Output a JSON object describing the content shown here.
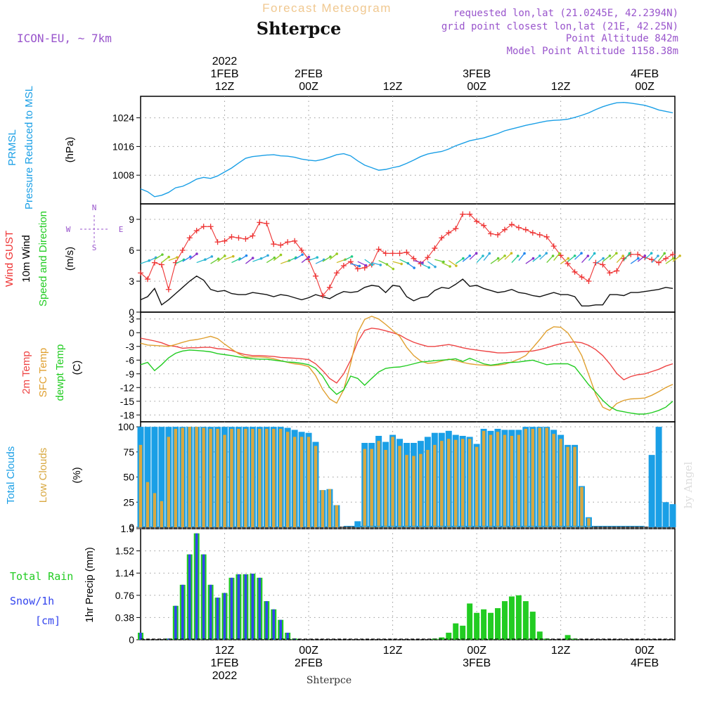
{
  "header": {
    "product_title": "Forecast Meteogram",
    "location": "Shterpce",
    "model": "ICON-EU, ~ 7km",
    "requested": "requested lon,lat (21.0245E, 42.2394N)",
    "grid_point": "grid point closest lon,lat (21E, 42.25N)",
    "point_altitude": "Point Altitude 842m",
    "model_altitude": "Model Point Altitude 1158.38m",
    "watermark": "by Angel",
    "bottom_label": "Shterpce"
  },
  "colors": {
    "pressure": "#1a9fe6",
    "gust": "#ee3333",
    "wind": "#111111",
    "temp": "#ee4444",
    "sfc_temp": "#e0a030",
    "dewpt": "#22cc22",
    "total_clouds": "#1a9fe6",
    "low_clouds": "#d8a840",
    "rain": "#22cc22",
    "snow": "#3344ee",
    "header_purple": "#9955cc",
    "header_orange": "#f0c890"
  },
  "time_axis": {
    "top_ticks": [
      {
        "t": 12,
        "l1": "1FEB",
        "l2": "12Z",
        "l0": "2022"
      },
      {
        "t": 24,
        "l1": "2FEB",
        "l2": "00Z"
      },
      {
        "t": 36,
        "l1": "",
        "l2": "12Z"
      },
      {
        "t": 48,
        "l1": "3FEB",
        "l2": "00Z"
      },
      {
        "t": 60,
        "l1": "",
        "l2": "12Z"
      },
      {
        "t": 72,
        "l1": "4FEB",
        "l2": "00Z"
      }
    ],
    "bottom_ticks": [
      {
        "t": 12,
        "l1": "12Z",
        "l2": "1FEB",
        "l3": "2022"
      },
      {
        "t": 24,
        "l1": "00Z",
        "l2": "2FEB"
      },
      {
        "t": 36,
        "l1": "12Z",
        "l2": ""
      },
      {
        "t": 48,
        "l1": "00Z",
        "l2": "3FEB"
      },
      {
        "t": 60,
        "l1": "12Z",
        "l2": ""
      },
      {
        "t": 72,
        "l1": "00Z",
        "l2": "4FEB"
      }
    ]
  },
  "chart_data": [
    {
      "type": "line",
      "name": "pressure",
      "ylabel_lines": [
        "PRMSL",
        "Pressure Reduced to MSL"
      ],
      "unit": "(hPa)",
      "yticks": [
        1008,
        1016,
        1024
      ],
      "ylim": [
        1000,
        1030
      ],
      "hours": [
        0,
        1,
        2,
        3,
        4,
        5,
        6,
        7,
        8,
        9,
        10,
        11,
        12,
        13,
        14,
        15,
        16,
        17,
        18,
        19,
        20,
        21,
        22,
        23,
        24,
        25,
        26,
        27,
        28,
        29,
        30,
        31,
        32,
        33,
        34,
        35,
        36,
        37,
        38,
        39,
        40,
        41,
        42,
        43,
        44,
        45,
        46,
        47,
        48,
        49,
        50,
        51,
        52,
        53,
        54,
        55,
        56,
        57,
        58,
        59,
        60,
        61,
        62,
        63,
        64,
        65,
        66,
        67,
        68,
        69,
        70,
        71,
        72,
        73,
        74,
        75,
        76
      ],
      "values": [
        1004.2,
        1003.4,
        1002.0,
        1002.4,
        1003.2,
        1004.5,
        1004.9,
        1005.8,
        1006.9,
        1007.4,
        1007.1,
        1007.8,
        1008.9,
        1010.0,
        1011.4,
        1012.7,
        1013.2,
        1013.4,
        1013.6,
        1013.7,
        1013.4,
        1013.3,
        1013.0,
        1012.5,
        1012.2,
        1012.0,
        1012.4,
        1013.0,
        1013.7,
        1014.0,
        1013.4,
        1012.0,
        1010.8,
        1010.1,
        1009.4,
        1009.6,
        1010.1,
        1010.5,
        1011.3,
        1012.2,
        1013.2,
        1013.9,
        1014.3,
        1014.6,
        1015.3,
        1016.2,
        1016.9,
        1017.6,
        1018.0,
        1018.4,
        1019.0,
        1019.6,
        1020.4,
        1020.9,
        1021.4,
        1021.9,
        1022.3,
        1022.7,
        1023.1,
        1023.3,
        1023.4,
        1023.6,
        1024.1,
        1024.7,
        1025.4,
        1026.3,
        1027.1,
        1027.7,
        1028.2,
        1028.3,
        1028.1,
        1027.8,
        1027.5,
        1026.9,
        1026.2,
        1025.8,
        1025.4
      ]
    },
    {
      "type": "line",
      "name": "wind",
      "ylabel_lines": [
        "Wind GUST",
        "10m Wind",
        "Speed and Direction"
      ],
      "unit": "(m/s)",
      "compass": {
        "n": "N",
        "s": "S",
        "w": "W",
        "e": "E"
      },
      "yticks": [
        0,
        3,
        6,
        9
      ],
      "ylim": [
        0,
        10.5
      ],
      "hours": [
        0,
        1,
        2,
        3,
        4,
        5,
        6,
        7,
        8,
        9,
        10,
        11,
        12,
        13,
        14,
        15,
        16,
        17,
        18,
        19,
        20,
        21,
        22,
        23,
        24,
        25,
        26,
        27,
        28,
        29,
        30,
        31,
        32,
        33,
        34,
        35,
        36,
        37,
        38,
        39,
        40,
        41,
        42,
        43,
        44,
        45,
        46,
        47,
        48,
        49,
        50,
        51,
        52,
        53,
        54,
        55,
        56,
        57,
        58,
        59,
        60,
        61,
        62,
        63,
        64,
        65,
        66,
        67,
        68,
        69,
        70,
        71,
        72,
        73,
        74,
        75,
        76
      ],
      "gust": [
        3.8,
        3.2,
        4.8,
        4.6,
        2.2,
        4.8,
        6.0,
        7.2,
        7.9,
        8.3,
        8.3,
        6.8,
        6.9,
        7.3,
        7.2,
        7.1,
        7.4,
        8.7,
        8.6,
        6.6,
        6.5,
        6.8,
        6.9,
        6.0,
        5.1,
        3.5,
        1.6,
        2.4,
        3.8,
        4.5,
        4.9,
        4.2,
        4.3,
        4.6,
        6.1,
        5.7,
        5.7,
        5.7,
        5.8,
        5.2,
        4.7,
        5.3,
        6.2,
        7.2,
        7.7,
        8.1,
        9.5,
        9.5,
        8.8,
        8.4,
        7.6,
        7.5,
        8.0,
        8.5,
        8.2,
        8.0,
        7.7,
        7.5,
        7.3,
        6.4,
        5.5,
        4.7,
        3.9,
        3.4,
        3.0,
        4.8,
        4.6,
        3.8,
        4.0,
        5.2,
        5.6,
        5.6,
        5.3,
        5.1,
        4.8,
        5.2,
        5.6
      ],
      "speed": [
        1.2,
        1.5,
        2.3,
        0.7,
        1.2,
        1.8,
        2.4,
        3.0,
        3.5,
        3.1,
        2.2,
        2.0,
        2.1,
        1.8,
        1.7,
        1.7,
        1.9,
        1.8,
        1.7,
        1.5,
        1.7,
        1.6,
        1.4,
        1.2,
        1.4,
        1.7,
        1.5,
        1.3,
        1.7,
        2.0,
        1.9,
        2.0,
        2.4,
        2.6,
        2.5,
        1.9,
        2.6,
        2.5,
        1.5,
        1.1,
        1.4,
        1.5,
        2.1,
        2.4,
        2.3,
        2.7,
        3.2,
        2.5,
        2.6,
        2.3,
        2.1,
        1.9,
        2.0,
        2.2,
        1.9,
        1.8,
        1.6,
        1.5,
        1.7,
        1.9,
        1.7,
        1.7,
        1.5,
        0.6,
        0.6,
        0.7,
        0.7,
        1.7,
        1.7,
        1.6,
        1.9,
        1.9,
        2.0,
        2.1,
        2.2,
        2.4,
        2.3
      ]
    },
    {
      "type": "line",
      "name": "temperature",
      "ylabel_lines": [
        "2m Temp",
        "SFC Temp",
        "dewpt Temp"
      ],
      "unit": "(C)",
      "yticks": [
        3,
        0,
        -3,
        -6,
        -9,
        -12,
        -15,
        -18
      ],
      "ylim": [
        -19.5,
        4.5
      ],
      "hours": [
        0,
        1,
        2,
        3,
        4,
        5,
        6,
        7,
        8,
        9,
        10,
        11,
        12,
        13,
        14,
        15,
        16,
        17,
        18,
        19,
        20,
        21,
        22,
        23,
        24,
        25,
        26,
        27,
        28,
        29,
        30,
        31,
        32,
        33,
        34,
        35,
        36,
        37,
        38,
        39,
        40,
        41,
        42,
        43,
        44,
        45,
        46,
        47,
        48,
        49,
        50,
        51,
        52,
        53,
        54,
        55,
        56,
        57,
        58,
        59,
        60,
        61,
        62,
        63,
        64,
        65,
        66,
        67,
        68,
        69,
        70,
        71,
        72,
        73,
        74,
        75,
        76
      ],
      "t2m": [
        -1.2,
        -1.5,
        -1.8,
        -2.2,
        -2.8,
        -3.0,
        -3.4,
        -3.3,
        -3.3,
        -3.2,
        -3.2,
        -3.5,
        -3.6,
        -3.9,
        -4.4,
        -4.8,
        -5.0,
        -5.0,
        -5.1,
        -5.2,
        -5.4,
        -5.5,
        -5.6,
        -5.7,
        -5.9,
        -6.8,
        -8.3,
        -10.0,
        -11.0,
        -9.0,
        -6.0,
        -2.0,
        0.5,
        1.0,
        0.8,
        0.4,
        0.0,
        -0.5,
        -1.4,
        -2.1,
        -2.6,
        -3.0,
        -3.0,
        -2.8,
        -2.6,
        -2.9,
        -3.3,
        -3.6,
        -3.8,
        -4.0,
        -4.2,
        -4.4,
        -4.4,
        -4.3,
        -4.2,
        -4.1,
        -4.0,
        -3.7,
        -3.3,
        -2.8,
        -2.4,
        -2.1,
        -2.0,
        -2.2,
        -2.8,
        -3.7,
        -5.0,
        -6.8,
        -8.9,
        -10.3,
        -9.6,
        -9.2,
        -9.0,
        -8.5,
        -8.0,
        -7.3,
        -6.8
      ],
      "sfc": [
        -2.3,
        -2.7,
        -2.8,
        -2.9,
        -3.0,
        -2.6,
        -2.1,
        -1.7,
        -1.5,
        -1.2,
        -0.8,
        -1.3,
        -2.5,
        -3.6,
        -4.6,
        -5.3,
        -5.3,
        -5.3,
        -5.4,
        -5.7,
        -6.1,
        -6.5,
        -6.8,
        -7.0,
        -7.4,
        -9.4,
        -12.4,
        -14.5,
        -15.4,
        -12.5,
        -6.8,
        0.0,
        2.9,
        3.6,
        3.0,
        1.8,
        0.5,
        -0.8,
        -3.2,
        -5.0,
        -6.2,
        -6.7,
        -6.6,
        -6.2,
        -5.8,
        -6.1,
        -6.5,
        -6.8,
        -7.0,
        -7.1,
        -7.2,
        -7.1,
        -6.9,
        -6.4,
        -5.8,
        -5.0,
        -3.3,
        -1.5,
        0.4,
        1.3,
        1.2,
        0.0,
        -2.3,
        -5.0,
        -9.2,
        -13.5,
        -16.3,
        -17.0,
        -15.5,
        -14.8,
        -14.5,
        -14.4,
        -14.3,
        -13.7,
        -12.9,
        -12.0,
        -11.3
      ],
      "dewpt": [
        -7.0,
        -6.5,
        -8.3,
        -7.0,
        -5.5,
        -4.5,
        -4.0,
        -3.8,
        -3.9,
        -4.0,
        -4.2,
        -4.6,
        -4.8,
        -5.0,
        -5.3,
        -5.5,
        -5.7,
        -5.8,
        -5.8,
        -6.0,
        -6.2,
        -6.4,
        -6.5,
        -6.7,
        -7.0,
        -7.8,
        -9.5,
        -12.0,
        -13.5,
        -12.5,
        -9.5,
        -10.0,
        -11.5,
        -10.0,
        -8.6,
        -7.8,
        -7.6,
        -7.5,
        -7.2,
        -6.8,
        -6.4,
        -6.3,
        -6.1,
        -6.0,
        -5.9,
        -5.7,
        -6.3,
        -5.6,
        -6.2,
        -6.8,
        -7.1,
        -6.9,
        -6.6,
        -6.5,
        -6.4,
        -6.2,
        -6.0,
        -6.5,
        -7.0,
        -6.8,
        -6.8,
        -6.8,
        -7.5,
        -9.4,
        -11.4,
        -13.0,
        -14.8,
        -16.2,
        -17.0,
        -17.3,
        -17.6,
        -17.8,
        -17.8,
        -17.5,
        -17.0,
        -16.3,
        -15.0
      ]
    },
    {
      "type": "bar",
      "name": "clouds",
      "ylabel_lines": [
        "Total Clouds",
        "Low Clouds"
      ],
      "unit": "(%)",
      "yticks": [
        0,
        25,
        50,
        75,
        100
      ],
      "ylim": [
        0,
        105
      ],
      "hours": [
        0,
        1,
        2,
        3,
        4,
        5,
        6,
        7,
        8,
        9,
        10,
        11,
        12,
        13,
        14,
        15,
        16,
        17,
        18,
        19,
        20,
        21,
        22,
        23,
        24,
        25,
        26,
        27,
        28,
        29,
        30,
        31,
        32,
        33,
        34,
        35,
        36,
        37,
        38,
        39,
        40,
        41,
        42,
        43,
        44,
        45,
        46,
        47,
        48,
        49,
        50,
        51,
        52,
        53,
        54,
        55,
        56,
        57,
        58,
        59,
        60,
        61,
        62,
        63,
        64,
        65,
        66,
        67,
        68,
        69,
        70,
        71,
        72,
        73,
        74,
        75,
        76
      ],
      "total": [
        100,
        100,
        100,
        100,
        100,
        100,
        100,
        100,
        100,
        100,
        100,
        100,
        100,
        100,
        100,
        100,
        100,
        100,
        100,
        100,
        100,
        99,
        97,
        95,
        94,
        85,
        37,
        38,
        22,
        0,
        0,
        6,
        84,
        84,
        91,
        85,
        92,
        88,
        84,
        84,
        86,
        90,
        94,
        94,
        96,
        92,
        91,
        90,
        83,
        98,
        96,
        98,
        97,
        97,
        97,
        100,
        100,
        100,
        100,
        97,
        92,
        82,
        82,
        41,
        10,
        0,
        0,
        0,
        0,
        0,
        0,
        0,
        0,
        72,
        100,
        25,
        23
      ],
      "low": [
        82,
        45,
        34,
        26,
        90,
        98,
        99,
        100,
        100,
        99,
        98,
        98,
        92,
        98,
        98,
        98,
        98,
        98,
        98,
        98,
        98,
        95,
        90,
        90,
        90,
        81,
        37,
        38,
        22,
        0,
        0,
        0,
        78,
        78,
        86,
        77,
        90,
        81,
        72,
        71,
        73,
        77,
        82,
        86,
        88,
        87,
        88,
        88,
        80,
        96,
        92,
        95,
        92,
        91,
        92,
        98,
        98,
        99,
        99,
        93,
        88,
        80,
        80,
        40,
        9,
        0,
        0,
        0,
        0,
        0,
        0,
        0,
        0,
        0,
        0,
        0,
        0
      ]
    },
    {
      "type": "bar",
      "name": "precipitation",
      "ylabel_lines": [
        "Total  Rain",
        "Snow/1h",
        "[cm]"
      ],
      "axis_title": "1hr Precip (mm)",
      "yticks": [
        0,
        0.38,
        0.76,
        1.14,
        1.52,
        1.9
      ],
      "ytick_labels": [
        "0",
        "0.38",
        "0.76",
        "1.14",
        "1.52",
        "1.9"
      ],
      "ylim": [
        0,
        1.9
      ],
      "hours": [
        0,
        1,
        2,
        3,
        4,
        5,
        6,
        7,
        8,
        9,
        10,
        11,
        12,
        13,
        14,
        15,
        16,
        17,
        18,
        19,
        20,
        21,
        22,
        23,
        24,
        25,
        26,
        27,
        28,
        29,
        30,
        31,
        32,
        33,
        34,
        35,
        36,
        37,
        38,
        39,
        40,
        41,
        42,
        43,
        44,
        45,
        46,
        47,
        48,
        49,
        50,
        51,
        52,
        53,
        54,
        55,
        56,
        57,
        58,
        59,
        60,
        61,
        62,
        63,
        64,
        65,
        66,
        67,
        68,
        69,
        70,
        71,
        72,
        73,
        74,
        75,
        76
      ],
      "rain": [
        0.12,
        0,
        0,
        0,
        0.02,
        0.58,
        0.94,
        1.46,
        1.82,
        1.46,
        0.94,
        0.72,
        0.8,
        1.06,
        1.12,
        1.12,
        1.13,
        1.06,
        0.66,
        0.52,
        0.34,
        0.12,
        0.02,
        0,
        0,
        0,
        0,
        0,
        0,
        0,
        0,
        0,
        0,
        0,
        0,
        0,
        0,
        0,
        0,
        0,
        0,
        0,
        0.02,
        0.04,
        0.12,
        0.28,
        0.24,
        0.62,
        0.46,
        0.52,
        0.46,
        0.54,
        0.66,
        0.74,
        0.76,
        0.66,
        0.48,
        0.14,
        0.02,
        0,
        0,
        0.08,
        0.02,
        0,
        0,
        0,
        0,
        0,
        0,
        0,
        0,
        0,
        0,
        0,
        0,
        0,
        0
      ],
      "snow": [
        0.12,
        0,
        0,
        0,
        0.02,
        0.58,
        0.94,
        1.46,
        1.82,
        1.46,
        0.94,
        0.72,
        0.8,
        1.06,
        1.12,
        1.12,
        1.13,
        1.06,
        0.66,
        0.52,
        0.34,
        0.12,
        0.02,
        0,
        0,
        0,
        0,
        0,
        0,
        0,
        0,
        0,
        0,
        0,
        0,
        0,
        0,
        0,
        0,
        0,
        0,
        0,
        0,
        0,
        0,
        0,
        0,
        0,
        0,
        0,
        0,
        0,
        0,
        0,
        0,
        0,
        0,
        0,
        0,
        0,
        0,
        0,
        0,
        0,
        0,
        0,
        0,
        0,
        0,
        0,
        0,
        0,
        0,
        0,
        0,
        0,
        0
      ]
    }
  ]
}
